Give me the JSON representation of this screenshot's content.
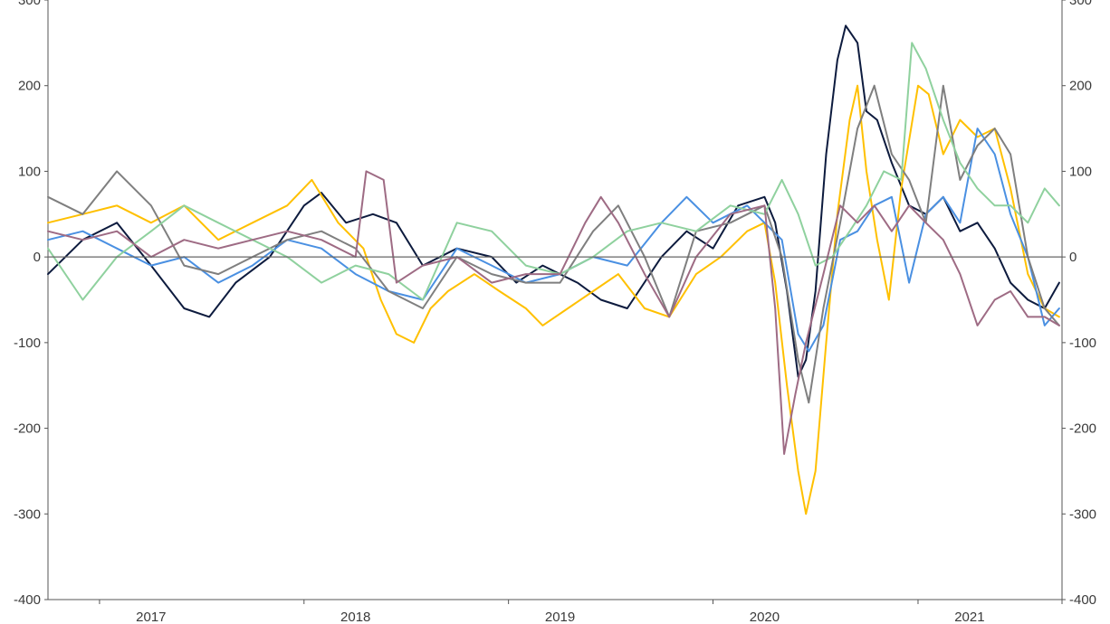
{
  "chart_data": {
    "type": "line",
    "title": "",
    "xlabel": "",
    "ylabel": "",
    "x_range": [
      "2016-07-01",
      "2021-06-15"
    ],
    "ylim": [
      -400,
      300
    ],
    "y_ticks": [
      -400,
      -300,
      -200,
      -100,
      0,
      100,
      200,
      300
    ],
    "y_tick_labels": [
      "-400",
      "-300",
      "-200",
      "-100",
      "0",
      "100",
      "200",
      "300"
    ],
    "y_axis_right": true,
    "x_tick_labels": [
      "2017",
      "2018",
      "2019",
      "2020",
      "2021"
    ],
    "x_tick_dates": [
      "2017-01-01",
      "2018-01-01",
      "2019-01-01",
      "2020-01-01",
      "2021-01-01"
    ],
    "grid": false,
    "zero_line": true,
    "series": [
      {
        "color": "#0d1b3e",
        "points": [
          [
            "2016-07-01",
            -20
          ],
          [
            "2016-09-01",
            20
          ],
          [
            "2016-11-01",
            40
          ],
          [
            "2017-01-01",
            -10
          ],
          [
            "2017-03-01",
            -60
          ],
          [
            "2017-04-15",
            -70
          ],
          [
            "2017-06-01",
            -30
          ],
          [
            "2017-08-01",
            0
          ],
          [
            "2017-10-01",
            60
          ],
          [
            "2017-11-01",
            75
          ],
          [
            "2017-12-15",
            40
          ],
          [
            "2018-02-01",
            50
          ],
          [
            "2018-03-15",
            40
          ],
          [
            "2018-05-01",
            -10
          ],
          [
            "2018-07-01",
            10
          ],
          [
            "2018-09-01",
            0
          ],
          [
            "2018-10-15",
            -30
          ],
          [
            "2018-12-01",
            -10
          ],
          [
            "2019-02-01",
            -30
          ],
          [
            "2019-03-15",
            -50
          ],
          [
            "2019-05-01",
            -60
          ],
          [
            "2019-07-01",
            0
          ],
          [
            "2019-08-15",
            30
          ],
          [
            "2019-10-01",
            10
          ],
          [
            "2019-11-15",
            60
          ],
          [
            "2020-01-01",
            70
          ],
          [
            "2020-01-20",
            40
          ],
          [
            "2020-02-10",
            -40
          ],
          [
            "2020-03-01",
            -140
          ],
          [
            "2020-03-15",
            -120
          ],
          [
            "2020-04-01",
            -40
          ],
          [
            "2020-04-20",
            120
          ],
          [
            "2020-05-10",
            230
          ],
          [
            "2020-05-25",
            270
          ],
          [
            "2020-06-15",
            250
          ],
          [
            "2020-07-01",
            170
          ],
          [
            "2020-07-20",
            160
          ],
          [
            "2020-08-15",
            110
          ],
          [
            "2020-09-15",
            60
          ],
          [
            "2020-10-15",
            50
          ],
          [
            "2020-11-15",
            70
          ],
          [
            "2020-12-15",
            30
          ],
          [
            "2021-01-15",
            40
          ],
          [
            "2021-02-15",
            10
          ],
          [
            "2021-03-15",
            -30
          ],
          [
            "2021-04-15",
            -50
          ],
          [
            "2021-05-15",
            -60
          ],
          [
            "2021-06-10",
            -30
          ]
        ]
      },
      {
        "color": "#ffc000",
        "points": [
          [
            "2016-07-01",
            40
          ],
          [
            "2016-09-01",
            50
          ],
          [
            "2016-11-01",
            60
          ],
          [
            "2017-01-01",
            40
          ],
          [
            "2017-03-01",
            60
          ],
          [
            "2017-05-01",
            20
          ],
          [
            "2017-07-01",
            40
          ],
          [
            "2017-09-01",
            60
          ],
          [
            "2017-10-15",
            90
          ],
          [
            "2017-12-01",
            40
          ],
          [
            "2018-01-15",
            10
          ],
          [
            "2018-02-15",
            -50
          ],
          [
            "2018-03-15",
            -90
          ],
          [
            "2018-04-15",
            -100
          ],
          [
            "2018-05-15",
            -60
          ],
          [
            "2018-06-15",
            -40
          ],
          [
            "2018-08-01",
            -20
          ],
          [
            "2018-09-15",
            -40
          ],
          [
            "2018-11-01",
            -60
          ],
          [
            "2018-12-01",
            -80
          ],
          [
            "2019-01-15",
            -60
          ],
          [
            "2019-03-01",
            -40
          ],
          [
            "2019-04-15",
            -20
          ],
          [
            "2019-06-01",
            -60
          ],
          [
            "2019-07-15",
            -70
          ],
          [
            "2019-09-01",
            -20
          ],
          [
            "2019-10-15",
            0
          ],
          [
            "2019-12-01",
            30
          ],
          [
            "2020-01-01",
            40
          ],
          [
            "2020-01-20",
            -30
          ],
          [
            "2020-02-10",
            -150
          ],
          [
            "2020-03-01",
            -250
          ],
          [
            "2020-03-15",
            -300
          ],
          [
            "2020-04-01",
            -250
          ],
          [
            "2020-04-20",
            -100
          ],
          [
            "2020-05-10",
            50
          ],
          [
            "2020-06-01",
            160
          ],
          [
            "2020-06-15",
            200
          ],
          [
            "2020-07-01",
            100
          ],
          [
            "2020-07-20",
            20
          ],
          [
            "2020-08-10",
            -50
          ],
          [
            "2020-09-01",
            80
          ],
          [
            "2020-10-01",
            200
          ],
          [
            "2020-10-20",
            190
          ],
          [
            "2020-11-15",
            120
          ],
          [
            "2020-12-15",
            160
          ],
          [
            "2021-01-15",
            140
          ],
          [
            "2021-02-15",
            150
          ],
          [
            "2021-03-15",
            80
          ],
          [
            "2021-04-15",
            -20
          ],
          [
            "2021-05-15",
            -60
          ],
          [
            "2021-06-10",
            -70
          ]
        ]
      },
      {
        "color": "#4a90e2",
        "points": [
          [
            "2016-07-01",
            20
          ],
          [
            "2016-09-01",
            30
          ],
          [
            "2016-11-01",
            10
          ],
          [
            "2017-01-01",
            -10
          ],
          [
            "2017-03-01",
            0
          ],
          [
            "2017-05-01",
            -30
          ],
          [
            "2017-07-01",
            -10
          ],
          [
            "2017-09-01",
            20
          ],
          [
            "2017-11-01",
            10
          ],
          [
            "2018-01-01",
            -20
          ],
          [
            "2018-03-01",
            -40
          ],
          [
            "2018-05-01",
            -50
          ],
          [
            "2018-07-01",
            10
          ],
          [
            "2018-09-01",
            -10
          ],
          [
            "2018-11-01",
            -30
          ],
          [
            "2019-01-01",
            -20
          ],
          [
            "2019-03-01",
            0
          ],
          [
            "2019-05-01",
            -10
          ],
          [
            "2019-07-01",
            40
          ],
          [
            "2019-08-15",
            70
          ],
          [
            "2019-10-01",
            40
          ],
          [
            "2019-12-01",
            60
          ],
          [
            "2020-01-01",
            40
          ],
          [
            "2020-02-01",
            20
          ],
          [
            "2020-03-01",
            -90
          ],
          [
            "2020-03-20",
            -110
          ],
          [
            "2020-04-15",
            -80
          ],
          [
            "2020-05-15",
            20
          ],
          [
            "2020-06-15",
            30
          ],
          [
            "2020-07-15",
            60
          ],
          [
            "2020-08-15",
            70
          ],
          [
            "2020-09-15",
            -30
          ],
          [
            "2020-10-15",
            50
          ],
          [
            "2020-11-15",
            70
          ],
          [
            "2020-12-15",
            40
          ],
          [
            "2021-01-15",
            150
          ],
          [
            "2021-02-15",
            120
          ],
          [
            "2021-03-15",
            50
          ],
          [
            "2021-04-15",
            0
          ],
          [
            "2021-05-15",
            -80
          ],
          [
            "2021-06-10",
            -60
          ]
        ]
      },
      {
        "color": "#7f7f7f",
        "points": [
          [
            "2016-07-01",
            70
          ],
          [
            "2016-09-01",
            50
          ],
          [
            "2016-11-01",
            100
          ],
          [
            "2017-01-01",
            60
          ],
          [
            "2017-03-01",
            -10
          ],
          [
            "2017-05-01",
            -20
          ],
          [
            "2017-07-01",
            0
          ],
          [
            "2017-09-01",
            20
          ],
          [
            "2017-11-01",
            30
          ],
          [
            "2018-01-01",
            10
          ],
          [
            "2018-03-01",
            -40
          ],
          [
            "2018-05-01",
            -60
          ],
          [
            "2018-07-01",
            0
          ],
          [
            "2018-09-01",
            -20
          ],
          [
            "2018-11-01",
            -30
          ],
          [
            "2019-01-01",
            -30
          ],
          [
            "2019-03-01",
            30
          ],
          [
            "2019-04-15",
            60
          ],
          [
            "2019-06-01",
            0
          ],
          [
            "2019-07-15",
            -70
          ],
          [
            "2019-09-01",
            30
          ],
          [
            "2019-11-01",
            40
          ],
          [
            "2020-01-01",
            60
          ],
          [
            "2020-02-01",
            0
          ],
          [
            "2020-03-01",
            -120
          ],
          [
            "2020-03-20",
            -170
          ],
          [
            "2020-04-15",
            -60
          ],
          [
            "2020-05-15",
            40
          ],
          [
            "2020-06-15",
            150
          ],
          [
            "2020-07-15",
            200
          ],
          [
            "2020-08-15",
            120
          ],
          [
            "2020-09-15",
            90
          ],
          [
            "2020-10-15",
            40
          ],
          [
            "2020-11-15",
            200
          ],
          [
            "2020-12-15",
            90
          ],
          [
            "2021-01-15",
            130
          ],
          [
            "2021-02-15",
            150
          ],
          [
            "2021-03-15",
            120
          ],
          [
            "2021-04-15",
            0
          ],
          [
            "2021-05-15",
            -60
          ],
          [
            "2021-06-10",
            -80
          ]
        ]
      },
      {
        "color": "#8fd19e",
        "points": [
          [
            "2016-07-01",
            10
          ],
          [
            "2016-09-01",
            -50
          ],
          [
            "2016-11-01",
            0
          ],
          [
            "2017-01-01",
            30
          ],
          [
            "2017-03-01",
            60
          ],
          [
            "2017-05-01",
            40
          ],
          [
            "2017-07-01",
            20
          ],
          [
            "2017-09-01",
            0
          ],
          [
            "2017-11-01",
            -30
          ],
          [
            "2018-01-01",
            -10
          ],
          [
            "2018-03-01",
            -20
          ],
          [
            "2018-05-01",
            -50
          ],
          [
            "2018-07-01",
            40
          ],
          [
            "2018-09-01",
            30
          ],
          [
            "2018-11-01",
            -10
          ],
          [
            "2019-01-01",
            -20
          ],
          [
            "2019-03-01",
            0
          ],
          [
            "2019-05-01",
            30
          ],
          [
            "2019-07-01",
            40
          ],
          [
            "2019-09-01",
            30
          ],
          [
            "2019-11-01",
            60
          ],
          [
            "2020-01-01",
            50
          ],
          [
            "2020-02-01",
            90
          ],
          [
            "2020-03-01",
            50
          ],
          [
            "2020-04-01",
            -10
          ],
          [
            "2020-05-01",
            0
          ],
          [
            "2020-06-01",
            30
          ],
          [
            "2020-07-01",
            60
          ],
          [
            "2020-08-01",
            100
          ],
          [
            "2020-09-01",
            90
          ],
          [
            "2020-09-20",
            250
          ],
          [
            "2020-10-15",
            220
          ],
          [
            "2020-11-15",
            160
          ],
          [
            "2020-12-15",
            110
          ],
          [
            "2021-01-15",
            80
          ],
          [
            "2021-02-15",
            60
          ],
          [
            "2021-03-15",
            60
          ],
          [
            "2021-04-15",
            40
          ],
          [
            "2021-05-15",
            80
          ],
          [
            "2021-06-10",
            60
          ]
        ]
      },
      {
        "color": "#9e6b84",
        "points": [
          [
            "2016-07-01",
            30
          ],
          [
            "2016-09-01",
            20
          ],
          [
            "2016-11-01",
            30
          ],
          [
            "2017-01-01",
            0
          ],
          [
            "2017-03-01",
            20
          ],
          [
            "2017-05-01",
            10
          ],
          [
            "2017-07-01",
            20
          ],
          [
            "2017-09-01",
            30
          ],
          [
            "2017-11-01",
            20
          ],
          [
            "2018-01-01",
            0
          ],
          [
            "2018-01-20",
            100
          ],
          [
            "2018-02-20",
            90
          ],
          [
            "2018-03-15",
            -30
          ],
          [
            "2018-05-01",
            -10
          ],
          [
            "2018-07-01",
            0
          ],
          [
            "2018-09-01",
            -30
          ],
          [
            "2018-11-01",
            -20
          ],
          [
            "2019-01-01",
            -20
          ],
          [
            "2019-02-15",
            40
          ],
          [
            "2019-03-15",
            70
          ],
          [
            "2019-04-15",
            40
          ],
          [
            "2019-06-01",
            -20
          ],
          [
            "2019-07-15",
            -70
          ],
          [
            "2019-09-01",
            0
          ],
          [
            "2019-11-01",
            50
          ],
          [
            "2020-01-01",
            60
          ],
          [
            "2020-01-20",
            -60
          ],
          [
            "2020-02-05",
            -230
          ],
          [
            "2020-02-25",
            -160
          ],
          [
            "2020-03-15",
            -100
          ],
          [
            "2020-04-15",
            -20
          ],
          [
            "2020-05-15",
            60
          ],
          [
            "2020-06-15",
            40
          ],
          [
            "2020-07-15",
            60
          ],
          [
            "2020-08-15",
            30
          ],
          [
            "2020-09-15",
            60
          ],
          [
            "2020-10-15",
            40
          ],
          [
            "2020-11-15",
            20
          ],
          [
            "2020-12-15",
            -20
          ],
          [
            "2021-01-15",
            -80
          ],
          [
            "2021-02-15",
            -50
          ],
          [
            "2021-03-15",
            -40
          ],
          [
            "2021-04-15",
            -70
          ],
          [
            "2021-05-15",
            -70
          ],
          [
            "2021-06-10",
            -80
          ]
        ]
      }
    ]
  }
}
